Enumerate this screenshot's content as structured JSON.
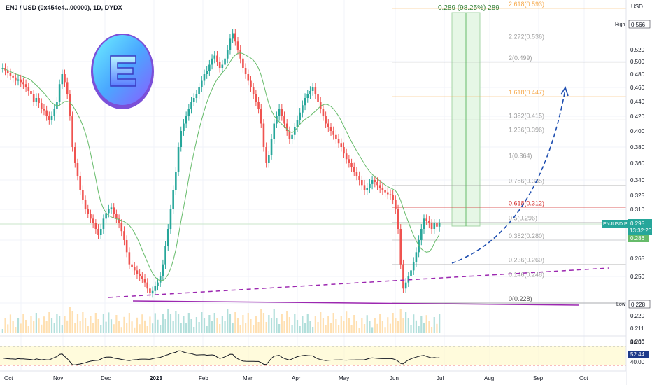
{
  "symbol_title": "ENJ / USD (0x454e4...00000), 1D, DYDX",
  "colors": {
    "up": "#26a69a",
    "down": "#ef5350",
    "ma": "#66bb6a",
    "fib": "#9e9e9e",
    "fib_gold": "#f6a94b",
    "fib_red": "#d32f2f",
    "trend": "#9c27b0",
    "arrow": "#1e4eb0",
    "target_box": "#e6f7e6",
    "rsi_line": "#131722",
    "rsi_band": "#fff9c4"
  },
  "price_axis": {
    "currency": "USD",
    "ticks": [
      "0.566",
      "0.520",
      "0.500",
      "0.480",
      "0.460",
      "0.440",
      "0.420",
      "0.400",
      "0.380",
      "0.360",
      "0.340",
      "0.325",
      "0.310",
      "0.295",
      "0.280",
      "0.265",
      "0.250",
      "0.228",
      "0.220",
      "0.211",
      "0.200"
    ],
    "high_label": "High",
    "high_value": "0.566",
    "low_label": "Low",
    "low_value": "0.228",
    "symbol_tag": "ENJUSD.P",
    "last_price": "0.295",
    "countdown": "13:32:20",
    "ma_value": "0.286"
  },
  "rsi": {
    "upper": "80.00",
    "lower": "40.00",
    "value": "52.44"
  },
  "time_axis": [
    "Oct",
    "Nov",
    "Dec",
    "2023",
    "Feb",
    "Mar",
    "Apr",
    "May",
    "Jun",
    "Jul",
    "Aug",
    "Sep",
    "Oct"
  ],
  "fib_levels": [
    {
      "label": "2.618(0.593)",
      "price": 0.593,
      "color": "gold"
    },
    {
      "label": "2.272(0.536)",
      "price": 0.536,
      "color": "gray"
    },
    {
      "label": "2(0.499)",
      "price": 0.499,
      "color": "gray"
    },
    {
      "label": "1.618(0.447)",
      "price": 0.447,
      "color": "gold"
    },
    {
      "label": "1.382(0.415)",
      "price": 0.415,
      "color": "gray"
    },
    {
      "label": "1.236(0.396)",
      "price": 0.396,
      "color": "gray"
    },
    {
      "label": "1(0.364)",
      "price": 0.364,
      "color": "gray"
    },
    {
      "label": "0.786(0.335)",
      "price": 0.335,
      "color": "gray"
    },
    {
      "label": "0.618(0.312)",
      "price": 0.312,
      "color": "red"
    },
    {
      "label": "0.5(0.296)",
      "price": 0.296,
      "color": "gray"
    },
    {
      "label": "0.382(0.280)",
      "price": 0.28,
      "color": "gray"
    },
    {
      "label": "0.236(0.260)",
      "price": 0.26,
      "color": "gray"
    },
    {
      "label": "0.146(0.248)",
      "price": 0.248,
      "color": "gray"
    },
    {
      "label": "0(0.228)",
      "price": 0.228,
      "color": "dark"
    }
  ],
  "target_label": "0.289 (98.25%) 289",
  "candles_close": [
    0.49,
    0.486,
    0.482,
    0.478,
    0.475,
    0.47,
    0.472,
    0.468,
    0.465,
    0.46,
    0.455,
    0.45,
    0.44,
    0.445,
    0.438,
    0.43,
    0.428,
    0.42,
    0.415,
    0.42,
    0.43,
    0.44,
    0.465,
    0.48,
    0.468,
    0.45,
    0.42,
    0.38,
    0.36,
    0.345,
    0.33,
    0.32,
    0.31,
    0.305,
    0.3,
    0.295,
    0.29,
    0.285,
    0.29,
    0.3,
    0.306,
    0.31,
    0.312,
    0.305,
    0.3,
    0.295,
    0.288,
    0.28,
    0.27,
    0.26,
    0.258,
    0.255,
    0.252,
    0.25,
    0.248,
    0.245,
    0.24,
    0.236,
    0.238,
    0.242,
    0.245,
    0.25,
    0.26,
    0.275,
    0.29,
    0.31,
    0.33,
    0.35,
    0.38,
    0.4,
    0.41,
    0.42,
    0.43,
    0.44,
    0.445,
    0.45,
    0.46,
    0.47,
    0.48,
    0.485,
    0.495,
    0.505,
    0.51,
    0.5,
    0.49,
    0.495,
    0.505,
    0.52,
    0.54,
    0.55,
    0.535,
    0.52,
    0.505,
    0.49,
    0.48,
    0.47,
    0.46,
    0.45,
    0.44,
    0.43,
    0.41,
    0.38,
    0.36,
    0.37,
    0.39,
    0.41,
    0.42,
    0.43,
    0.42,
    0.41,
    0.4,
    0.39,
    0.395,
    0.405,
    0.415,
    0.425,
    0.435,
    0.445,
    0.45,
    0.455,
    0.46,
    0.45,
    0.44,
    0.43,
    0.42,
    0.41,
    0.405,
    0.4,
    0.395,
    0.39,
    0.385,
    0.38,
    0.372,
    0.365,
    0.36,
    0.355,
    0.35,
    0.345,
    0.34,
    0.335,
    0.33,
    0.332,
    0.336,
    0.34,
    0.338,
    0.335,
    0.332,
    0.33,
    0.328,
    0.326,
    0.325,
    0.32,
    0.31,
    0.29,
    0.26,
    0.24,
    0.245,
    0.25,
    0.255,
    0.262,
    0.27,
    0.28,
    0.29,
    0.3,
    0.298,
    0.295,
    0.29,
    0.295,
    0.292,
    0.295
  ]
}
